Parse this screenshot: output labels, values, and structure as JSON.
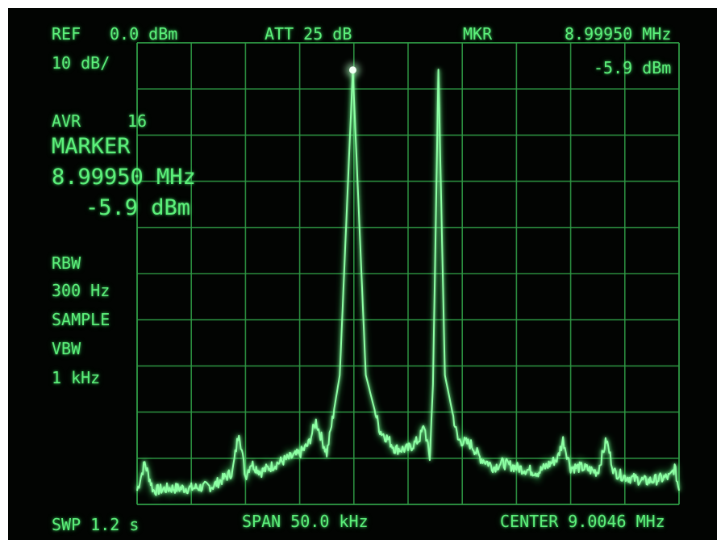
{
  "header": {
    "ref_label": "REF",
    "ref_value": "0.0 dBm",
    "attenuation": "ATT 25 dB",
    "marker_label": "MKR",
    "marker_freq": "8.99950 MHz",
    "marker_level": "-5.9 dBm",
    "scale": "10 dB/"
  },
  "left_panel": {
    "averaging_label": "AVR",
    "averaging_count": "16",
    "marker_title": "MARKER",
    "marker_freq": "8.99950 MHz",
    "marker_level": "-5.9 dBm",
    "rbw_label": "RBW",
    "rbw_value": "300 Hz",
    "detector": "SAMPLE",
    "vbw_label": "VBW",
    "vbw_value": "1 kHz"
  },
  "footer": {
    "sweep": "SWP 1.2 s",
    "span": "SPAN 50.0 kHz",
    "center": "CENTER 9.0046 MHz"
  },
  "colors": {
    "trace": "#8dffa4",
    "graticule": "#2f9a45",
    "text": "#5cf07a",
    "background": "#020402"
  },
  "chart_data": {
    "type": "line",
    "x_unit": "kHz offset from center",
    "y_unit": "dBm",
    "xlim": [
      -25,
      25
    ],
    "ylim": [
      -100,
      0
    ],
    "grid": true,
    "marker": {
      "x": -5.1,
      "y": -5.9
    },
    "series": [
      {
        "x": [
          -25,
          -24.3,
          -23.5,
          -22,
          -20,
          -18,
          -16.2,
          -15.6,
          -15,
          -14.5,
          -13.6,
          -12,
          -10,
          -9.2,
          -8.5,
          -7.5,
          -6.3,
          -5.1,
          -3.9,
          -2.6,
          -1.8,
          -1.2,
          0,
          1,
          1.5,
          2,
          2.3,
          2.8,
          3.4,
          4.6,
          5.8,
          6.7,
          7.4,
          7.9,
          8.6,
          10,
          12,
          13.8,
          14.3,
          15,
          16,
          17.5,
          18.3,
          19,
          20,
          22,
          24.2,
          24.6,
          25
        ],
        "y": [
          -97,
          -91,
          -97,
          -96.5,
          -96.5,
          -96,
          -93,
          -84,
          -94,
          -91,
          -93,
          -91,
          -89,
          -87,
          -82,
          -89,
          -72,
          -5.9,
          -72,
          -84,
          -86,
          -88,
          -88,
          -86,
          -83,
          -90,
          -74,
          -5.8,
          -72,
          -86,
          -87,
          -90,
          -91,
          -92,
          -91,
          -92,
          -93,
          -90,
          -86,
          -92,
          -92,
          -93,
          -86,
          -93,
          -94,
          -95,
          -94,
          -92,
          -97
        ]
      }
    ]
  }
}
